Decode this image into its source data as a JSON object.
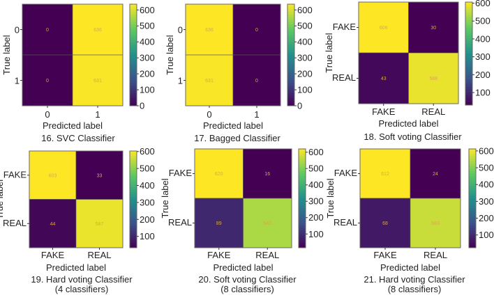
{
  "chart_data": [
    {
      "type": "heatmap",
      "caption": [
        "16. SVC Classifier"
      ],
      "xlabel": "Predicted label",
      "ylabel": "True label",
      "labels": [
        "0",
        "1"
      ],
      "matrix": [
        [
          0,
          636
        ],
        [
          0,
          631
        ]
      ],
      "colorbar": {
        "colormap": "viridis",
        "range": [
          0,
          636
        ],
        "ticks": [
          0,
          100,
          200,
          300,
          400,
          500,
          600
        ]
      }
    },
    {
      "type": "heatmap",
      "caption": [
        "17. Bagged Classifier"
      ],
      "xlabel": "Predicted label",
      "ylabel": "True label",
      "labels": [
        "0",
        "1"
      ],
      "matrix": [
        [
          636,
          0
        ],
        [
          631,
          0
        ]
      ],
      "colorbar": {
        "colormap": "viridis",
        "range": [
          0,
          636
        ],
        "ticks": [
          0,
          100,
          200,
          300,
          400,
          500,
          600
        ]
      }
    },
    {
      "type": "heatmap",
      "caption": [
        "18. Soft voting Classifier"
      ],
      "xlabel": "Predicted label",
      "ylabel": "True label",
      "labels": [
        "FAKE",
        "REAL"
      ],
      "matrix": [
        [
          606,
          30
        ],
        [
          43,
          588
        ]
      ],
      "colorbar": {
        "colormap": "viridis",
        "range": [
          30,
          606
        ],
        "ticks": [
          100,
          200,
          300,
          400,
          500,
          600
        ]
      }
    },
    {
      "type": "heatmap",
      "caption": [
        "19. Hard voting Classifier",
        "(4 classifiers)"
      ],
      "xlabel": "Predicted label",
      "ylabel": "True label",
      "labels": [
        "FAKE",
        "REAL"
      ],
      "matrix": [
        [
          603,
          33
        ],
        [
          44,
          587
        ]
      ],
      "colorbar": {
        "colormap": "viridis",
        "range": [
          33,
          603
        ],
        "ticks": [
          100,
          200,
          300,
          400,
          500,
          600
        ]
      }
    },
    {
      "type": "heatmap",
      "caption": [
        "20. Soft voting Classifier",
        "(8 classifiers)"
      ],
      "xlabel": "Predicted label",
      "ylabel": "True label",
      "labels": [
        "FAKE",
        "REAL"
      ],
      "matrix": [
        [
          620,
          16
        ],
        [
          89,
          542
        ]
      ],
      "colorbar": {
        "colormap": "viridis",
        "range": [
          16,
          620
        ],
        "ticks": [
          100,
          200,
          300,
          400,
          500,
          600
        ]
      }
    },
    {
      "type": "heatmap",
      "caption": [
        "21. Hard voting Classifier",
        "(8 classifiers)"
      ],
      "xlabel": "Predicted label",
      "ylabel": "True label",
      "labels": [
        "FAKE",
        "REAL"
      ],
      "matrix": [
        [
          612,
          24
        ],
        [
          68,
          563
        ]
      ],
      "colorbar": {
        "colormap": "viridis",
        "range": [
          24,
          612
        ],
        "ticks": [
          100,
          200,
          300,
          400,
          500,
          600
        ]
      }
    }
  ]
}
